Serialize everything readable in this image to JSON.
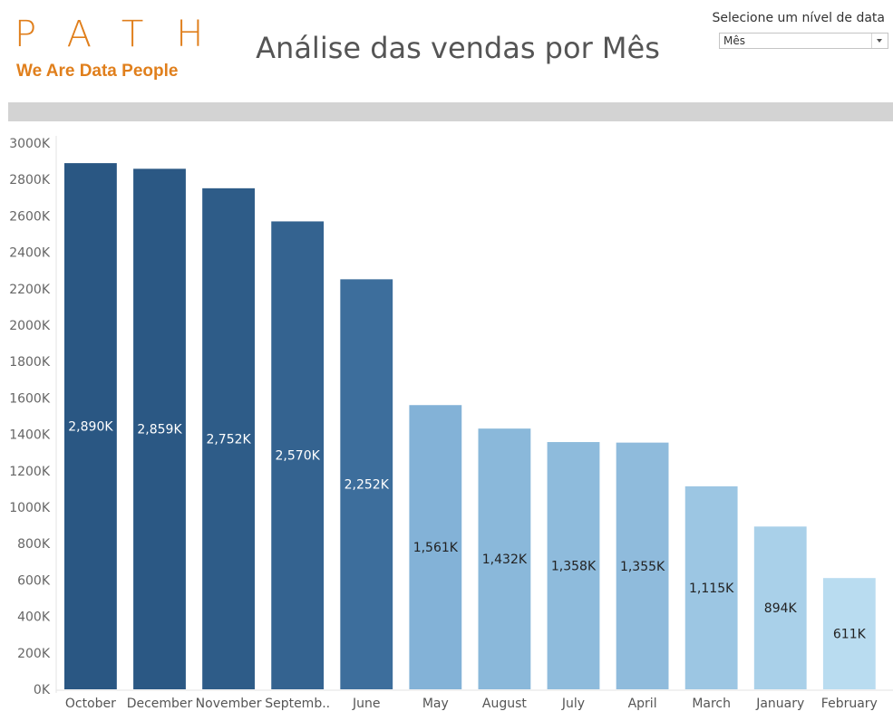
{
  "header": {
    "logo_text": "PATH",
    "logo_tagline": "We Are Data People",
    "title": "Análise das vendas por Mês"
  },
  "filter": {
    "label": "Selecione um nível de data",
    "selected": "Mês"
  },
  "colors": {
    "brand": "#e07f1c",
    "title": "#555555",
    "bar_dark": "#2a5783",
    "bar_light": "#b9dcf0"
  },
  "chart_data": {
    "type": "bar",
    "title": "Análise das vendas por Mês",
    "xlabel": "",
    "ylabel": "",
    "categories": [
      "October",
      "December",
      "November",
      "Septemb..",
      "June",
      "May",
      "August",
      "July",
      "April",
      "March",
      "January",
      "February"
    ],
    "values": [
      2890,
      2859,
      2752,
      2570,
      2252,
      1561,
      1432,
      1358,
      1355,
      1115,
      894,
      611
    ],
    "data_labels": [
      "2,890K",
      "2,859K",
      "2,752K",
      "2,570K",
      "2,252K",
      "1,561K",
      "1,432K",
      "1,358K",
      "1,355K",
      "1,115K",
      "894K",
      "611K"
    ],
    "ylim": [
      0,
      3000
    ],
    "yticks": [
      0,
      200,
      400,
      600,
      800,
      1000,
      1200,
      1400,
      1600,
      1800,
      2000,
      2200,
      2400,
      2600,
      2800,
      3000
    ],
    "ytick_labels": [
      "0K",
      "200K",
      "400K",
      "600K",
      "800K",
      "1000K",
      "1200K",
      "1400K",
      "1600K",
      "1800K",
      "2000K",
      "2200K",
      "2400K",
      "2600K",
      "2800K",
      "3000K"
    ],
    "grid": false,
    "legend": "none"
  }
}
